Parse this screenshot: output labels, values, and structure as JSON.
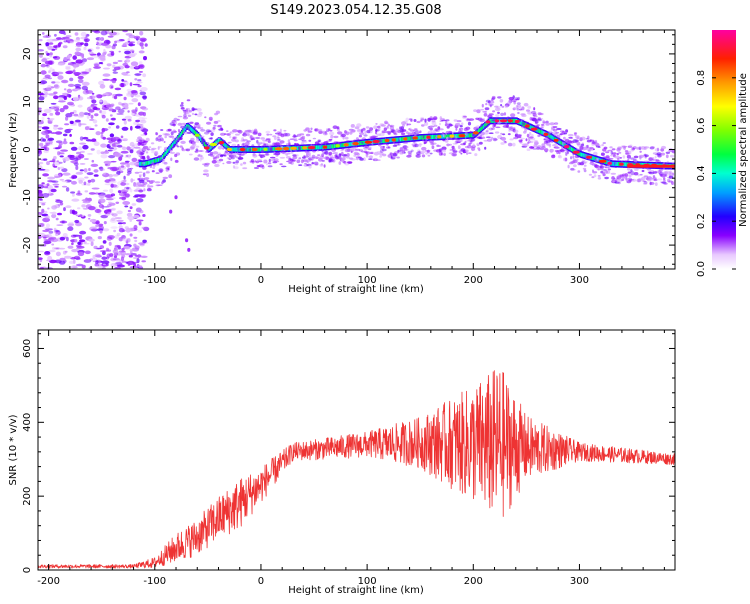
{
  "title": "S149.2023.054.12.35.G08",
  "chart_data": [
    {
      "type": "heatmap",
      "xlabel": "Height of straight line (km)",
      "ylabel": "Frequency (Hz)",
      "xlim": [
        -210,
        390
      ],
      "ylim": [
        -25,
        25
      ],
      "xticks": [
        -200,
        -100,
        0,
        100,
        200,
        300
      ],
      "yticks": [
        -20,
        -10,
        0,
        10,
        20
      ],
      "colorbar": {
        "label": "Normalized spectral amplitude",
        "range": [
          0,
          1
        ],
        "ticks": [
          0.0,
          0.2,
          0.4,
          0.6,
          0.8
        ],
        "colormap": "gist_ncar-like"
      },
      "ridge": {
        "description_points": [
          {
            "x": -110,
            "y": -3
          },
          {
            "x": -95,
            "y": -2
          },
          {
            "x": -80,
            "y": 2
          },
          {
            "x": -70,
            "y": 5
          },
          {
            "x": -60,
            "y": 3
          },
          {
            "x": -50,
            "y": 0
          },
          {
            "x": -40,
            "y": 2
          },
          {
            "x": -30,
            "y": 0
          },
          {
            "x": 0,
            "y": 0
          },
          {
            "x": 60,
            "y": 0.5
          },
          {
            "x": 100,
            "y": 1.5
          },
          {
            "x": 150,
            "y": 2.5
          },
          {
            "x": 200,
            "y": 3
          },
          {
            "x": 215,
            "y": 6
          },
          {
            "x": 240,
            "y": 6
          },
          {
            "x": 270,
            "y": 3
          },
          {
            "x": 300,
            "y": -1
          },
          {
            "x": 330,
            "y": -3
          },
          {
            "x": 390,
            "y": -3.5
          }
        ],
        "noise_region_x": [
          -210,
          -120
        ]
      }
    },
    {
      "type": "line",
      "xlabel": "Height of straight line (km)",
      "ylabel": "SNR (10 * v/v)",
      "xlim": [
        -210,
        390
      ],
      "ylim": [
        0,
        650
      ],
      "xticks": [
        -200,
        -100,
        0,
        100,
        200,
        300
      ],
      "yticks": [
        0,
        200,
        400,
        600
      ],
      "color": "#ee3333",
      "envelope": [
        {
          "x": -210,
          "y": 10,
          "amp": 5
        },
        {
          "x": -120,
          "y": 10,
          "amp": 5
        },
        {
          "x": -100,
          "y": 20,
          "amp": 15
        },
        {
          "x": -80,
          "y": 60,
          "amp": 40
        },
        {
          "x": -60,
          "y": 90,
          "amp": 50
        },
        {
          "x": -40,
          "y": 140,
          "amp": 60
        },
        {
          "x": -20,
          "y": 180,
          "amp": 70
        },
        {
          "x": 0,
          "y": 230,
          "amp": 50
        },
        {
          "x": 30,
          "y": 320,
          "amp": 25
        },
        {
          "x": 100,
          "y": 340,
          "amp": 35
        },
        {
          "x": 150,
          "y": 345,
          "amp": 70
        },
        {
          "x": 200,
          "y": 340,
          "amp": 160
        },
        {
          "x": 225,
          "y": 340,
          "amp": 220
        },
        {
          "x": 250,
          "y": 330,
          "amp": 90
        },
        {
          "x": 300,
          "y": 320,
          "amp": 25
        },
        {
          "x": 390,
          "y": 300,
          "amp": 15
        }
      ]
    }
  ]
}
